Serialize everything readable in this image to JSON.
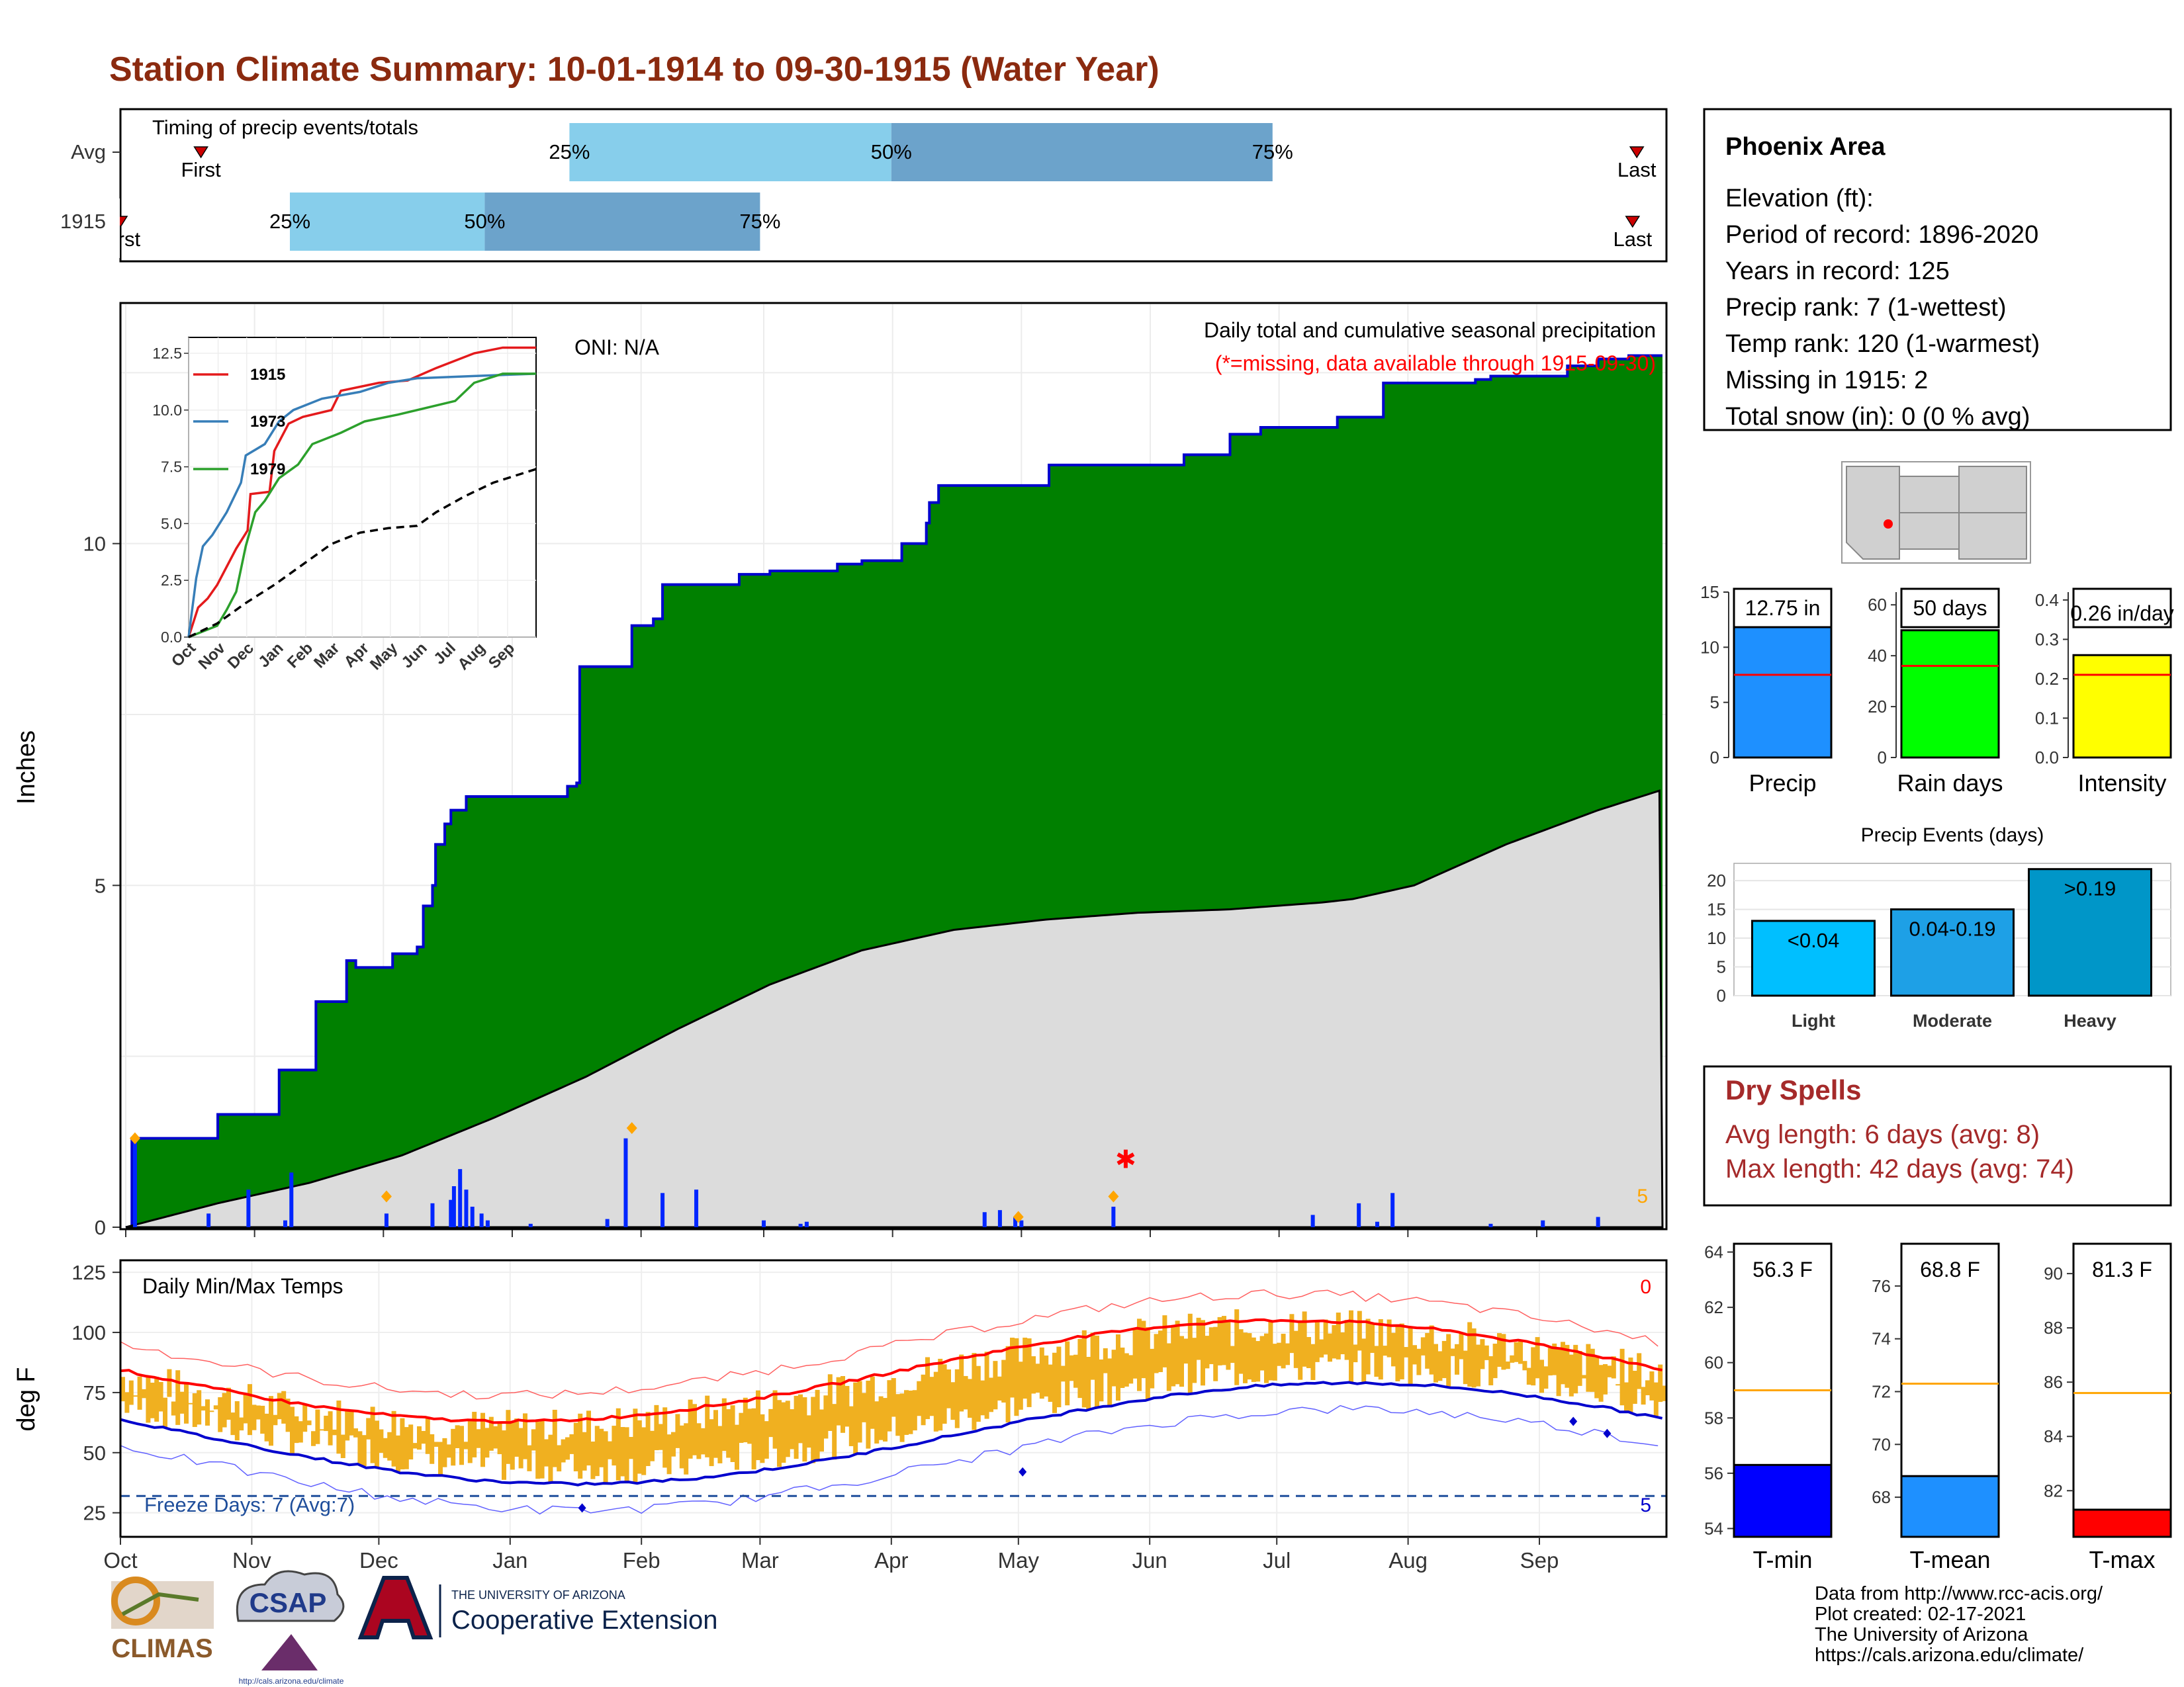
{
  "title": "Station Climate Summary: 10-01-1914 to 09-30-1915 (Water Year)",
  "months": [
    "Oct",
    "Nov",
    "Dec",
    "Jan",
    "Feb",
    "Mar",
    "Apr",
    "May",
    "Jun",
    "Jul",
    "Aug",
    "Sep"
  ],
  "colors": {
    "title": "#8b2a0f",
    "q1": "#87ceeb",
    "q2": "#6ca3cb",
    "green": "#008000",
    "blue_line": "#0000cd",
    "gray": "#dcdcdc",
    "bar": "#0026ff",
    "orange": "#ffa500",
    "tband": "#f0b020",
    "red": "#ff0000",
    "dry": "#a52a2a",
    "dark_blue": "#1f4e9b"
  },
  "timing": {
    "title": "Timing of precip events/totals",
    "rows": [
      {
        "label": "Avg",
        "first": "First",
        "last": "Last",
        "q25": "25%",
        "q50": "50%",
        "q75": "75%",
        "first_day": 19,
        "last_day": 358,
        "q25_day": 106,
        "q50_day": 182,
        "q75_day": 272
      },
      {
        "label": "1915",
        "first": "First",
        "last": "Last",
        "q25": "25%",
        "q50": "50%",
        "q75": "75%",
        "first_day": 0,
        "last_day": 357,
        "q25_day": 40,
        "q50_day": 86,
        "q75_day": 151
      }
    ]
  },
  "precip": {
    "ylabel": "Inches",
    "yticks": [
      0,
      5,
      10
    ],
    "ylim": [
      0,
      13.5
    ],
    "header": "Daily total and cumulative seasonal precipitation",
    "missing_note": "(*=missing, data available through 1915-09-30)",
    "oni": "ONI: N/A",
    "count_label": "5",
    "cum_1915_steps": [
      [
        0,
        0
      ],
      [
        2,
        1.3
      ],
      [
        20,
        1.3
      ],
      [
        30,
        1.65
      ],
      [
        40,
        1.65
      ],
      [
        50,
        2.3
      ],
      [
        61,
        2.3
      ],
      [
        62,
        3.3
      ],
      [
        71,
        3.3
      ],
      [
        72,
        3.9
      ],
      [
        75,
        3.8
      ],
      [
        84,
        3.8
      ],
      [
        87,
        4.0
      ],
      [
        95,
        4.1
      ],
      [
        97,
        4.7
      ],
      [
        100,
        5.0
      ],
      [
        101,
        5.6
      ],
      [
        104,
        5.9
      ],
      [
        106,
        6.1
      ],
      [
        111,
        6.3
      ],
      [
        125,
        6.3
      ],
      [
        144,
        6.45
      ],
      [
        147,
        6.5
      ],
      [
        148,
        8.2
      ],
      [
        160,
        8.2
      ],
      [
        165,
        8.8
      ],
      [
        172,
        8.9
      ],
      [
        175,
        9.4
      ],
      [
        190,
        9.4
      ],
      [
        200,
        9.55
      ],
      [
        210,
        9.6
      ],
      [
        225,
        9.6
      ],
      [
        232,
        9.7
      ],
      [
        240,
        9.75
      ],
      [
        252,
        9.75
      ],
      [
        253,
        10.0
      ],
      [
        260,
        10.0
      ],
      [
        261,
        10.3
      ],
      [
        262,
        10.6
      ],
      [
        265,
        10.85
      ],
      [
        300,
        10.85
      ],
      [
        301,
        11.15
      ],
      [
        340,
        11.15
      ],
      [
        345,
        11.2
      ],
      [
        345,
        11.3
      ],
      [
        359,
        11.3
      ],
      [
        360,
        11.6
      ],
      [
        362,
        11.6
      ],
      [
        370,
        11.7
      ],
      [
        395,
        11.85
      ],
      [
        410,
        12.35
      ],
      [
        440,
        12.4
      ],
      [
        445,
        12.45
      ],
      [
        470,
        12.6
      ],
      [
        480,
        12.7
      ],
      [
        490,
        12.75
      ],
      [
        501,
        12.75
      ]
    ],
    "avg_cum": [
      [
        0,
        0
      ],
      [
        30,
        0.35
      ],
      [
        60,
        0.65
      ],
      [
        90,
        1.05
      ],
      [
        120,
        1.6
      ],
      [
        150,
        2.2
      ],
      [
        180,
        2.9
      ],
      [
        210,
        3.55
      ],
      [
        240,
        4.05
      ],
      [
        270,
        4.35
      ],
      [
        300,
        4.5
      ],
      [
        330,
        4.6
      ],
      [
        360,
        4.65
      ],
      [
        390,
        4.75
      ],
      [
        400,
        4.8
      ],
      [
        420,
        5.0
      ],
      [
        450,
        5.6
      ],
      [
        480,
        6.1
      ],
      [
        501,
        6.4
      ]
    ],
    "daily_bars": [
      [
        3,
        1.35
      ],
      [
        27,
        0.2
      ],
      [
        40,
        0.55
      ],
      [
        52,
        0.1
      ],
      [
        54,
        0.8
      ],
      [
        85,
        0.2
      ],
      [
        100,
        0.35
      ],
      [
        106,
        0.4
      ],
      [
        107,
        0.6
      ],
      [
        109,
        0.85
      ],
      [
        111,
        0.55
      ],
      [
        113,
        0.3
      ],
      [
        116,
        0.2
      ],
      [
        118,
        0.1
      ],
      [
        132,
        0.05
      ],
      [
        157,
        0.12
      ],
      [
        163,
        1.3
      ],
      [
        175,
        0.5
      ],
      [
        186,
        0.55
      ],
      [
        208,
        0.1
      ],
      [
        220,
        0.05
      ],
      [
        222,
        0.08
      ],
      [
        280,
        0.22
      ],
      [
        285,
        0.25
      ],
      [
        290,
        0.15
      ],
      [
        292,
        0.1
      ],
      [
        322,
        0.3
      ],
      [
        387,
        0.18
      ],
      [
        402,
        0.35
      ],
      [
        408,
        0.08
      ],
      [
        413,
        0.5
      ],
      [
        445,
        0.05
      ],
      [
        462,
        0.1
      ],
      [
        480,
        0.15
      ]
    ],
    "orange_markers": [
      [
        3,
        1.3
      ],
      [
        85,
        0.45
      ],
      [
        165,
        1.45
      ],
      [
        291,
        0.15
      ],
      [
        322,
        0.45
      ]
    ],
    "missing_marker": [
      [
        326,
        1.0
      ]
    ],
    "inset": {
      "yticks": [
        "12.5",
        "10.0",
        "7.5",
        "5.0",
        "2.5",
        "0.0"
      ],
      "series": [
        {
          "name": "1915",
          "color": "#e41a1c",
          "values": [
            [
              0,
              0
            ],
            [
              10,
              1.3
            ],
            [
              20,
              1.7
            ],
            [
              30,
              2.3
            ],
            [
              50,
              3.9
            ],
            [
              62,
              4.7
            ],
            [
              65,
              6.3
            ],
            [
              85,
              6.4
            ],
            [
              90,
              8.2
            ],
            [
              100,
              9.0
            ],
            [
              105,
              9.4
            ],
            [
              120,
              9.7
            ],
            [
              150,
              10.0
            ],
            [
              160,
              10.85
            ],
            [
              200,
              11.2
            ],
            [
              230,
              11.3
            ],
            [
              260,
              11.85
            ],
            [
              300,
              12.5
            ],
            [
              330,
              12.75
            ],
            [
              365,
              12.75
            ]
          ]
        },
        {
          "name": "1973",
          "color": "#377eb8",
          "values": [
            [
              0,
              0
            ],
            [
              8,
              2.6
            ],
            [
              15,
              4.0
            ],
            [
              25,
              4.5
            ],
            [
              40,
              5.5
            ],
            [
              55,
              6.8
            ],
            [
              60,
              8.0
            ],
            [
              80,
              8.5
            ],
            [
              95,
              9.5
            ],
            [
              110,
              10.0
            ],
            [
              140,
              10.5
            ],
            [
              180,
              10.8
            ],
            [
              210,
              11.2
            ],
            [
              240,
              11.4
            ],
            [
              300,
              11.5
            ],
            [
              365,
              11.6
            ]
          ]
        },
        {
          "name": "1979",
          "color": "#2ca02c",
          "values": [
            [
              0,
              0
            ],
            [
              30,
              0.5
            ],
            [
              40,
              1.2
            ],
            [
              50,
              2.0
            ],
            [
              60,
              4.0
            ],
            [
              70,
              5.5
            ],
            [
              80,
              6.0
            ],
            [
              95,
              7.0
            ],
            [
              115,
              7.6
            ],
            [
              130,
              8.5
            ],
            [
              160,
              9.0
            ],
            [
              185,
              9.5
            ],
            [
              220,
              9.8
            ],
            [
              260,
              10.2
            ],
            [
              280,
              10.4
            ],
            [
              300,
              11.2
            ],
            [
              330,
              11.6
            ],
            [
              365,
              11.6
            ]
          ]
        },
        {
          "name": "",
          "color": "#000000",
          "values": [
            [
              0,
              0
            ],
            [
              30,
              0.6
            ],
            [
              60,
              1.5
            ],
            [
              90,
              2.3
            ],
            [
              120,
              3.2
            ],
            [
              150,
              4.1
            ],
            [
              180,
              4.6
            ],
            [
              210,
              4.8
            ],
            [
              240,
              4.9
            ],
            [
              260,
              5.5
            ],
            [
              290,
              6.2
            ],
            [
              320,
              6.8
            ],
            [
              365,
              7.4
            ]
          ]
        }
      ]
    }
  },
  "temps": {
    "ylabel": "deg F",
    "title": "Daily Min/Max Temps",
    "yticks": [
      25,
      50,
      75,
      100,
      125
    ],
    "ylim": [
      15,
      130
    ],
    "freeze_label": "Freeze Days: 7 (Avg:7)",
    "freeze_value": 32,
    "top_count": "0",
    "bottom_count": "5"
  },
  "info": {
    "station": "Phoenix Area",
    "lines": [
      "Elevation (ft):",
      "Period of record: 1896-2020",
      "Years in record: 125",
      "Precip rank: 7 (1-wettest)",
      "Temp rank: 120 (1-warmest)",
      "Missing in 1915: 2",
      "Total snow (in): 0 (0 % avg)"
    ]
  },
  "mini_bars": [
    {
      "name": "Precip",
      "label": "12.75 in",
      "value": 12.75,
      "avg": 7.5,
      "ylim": [
        0,
        15
      ],
      "ticks": [
        "15",
        "10",
        "5",
        "0"
      ],
      "color": "#1e90ff"
    },
    {
      "name": "Rain days",
      "label": "50 days",
      "value": 50,
      "avg": 36,
      "ylim": [
        0,
        65
      ],
      "ticks": [
        "60",
        "40",
        "20",
        "0"
      ],
      "color": "#00ff00"
    },
    {
      "name": "Intensity",
      "label": "0.26 in/day",
      "value": 0.26,
      "avg": 0.21,
      "ylim": [
        0,
        0.42
      ],
      "ticks": [
        "0.4",
        "0.3",
        "0.2",
        "0.1",
        "0.0"
      ],
      "color": "#ffff00"
    }
  ],
  "events": {
    "title": "Precip Events (days)",
    "bars": [
      {
        "name": "Light",
        "label": "<0.04",
        "value": 13
      },
      {
        "name": "Moderate",
        "label": "0.04-0.19",
        "value": 15
      },
      {
        "name": "Heavy",
        "label": ">0.19",
        "value": 22
      }
    ],
    "ticks": [
      "20",
      "15",
      "10",
      "5",
      "0"
    ]
  },
  "dry": {
    "title": "Dry Spells",
    "avg": "Avg length: 6 days (avg: 8)",
    "max": "Max length: 42 days (avg: 74)"
  },
  "temp_bars": [
    {
      "name": "T-min",
      "label": "56.3 F",
      "value": 56.3,
      "avg": 59.0,
      "ylim": [
        53.7,
        64.3
      ],
      "ticks": [
        "64",
        "62",
        "60",
        "58",
        "56",
        "54"
      ],
      "color": "#0000ff"
    },
    {
      "name": "T-mean",
      "label": "68.8 F",
      "value": 68.8,
      "avg": 72.3,
      "ylim": [
        66.5,
        77.6
      ],
      "ticks": [
        "76",
        "74",
        "72",
        "70",
        "68"
      ],
      "color": "#1e90ff"
    },
    {
      "name": "T-max",
      "label": "81.3 F",
      "value": 81.3,
      "avg": 85.6,
      "ylim": [
        80.3,
        91.1
      ],
      "ticks": [
        "90",
        "88",
        "86",
        "84",
        "82"
      ],
      "color": "#ff0000"
    }
  ],
  "credits": [
    "Data from http://www.rcc-acis.org/",
    "Plot created: 02-17-2021",
    "The University of Arizona",
    "https://cals.arizona.edu/climate/"
  ],
  "logos": {
    "climas": "CLIMAS",
    "csap": "CSAP",
    "csap_url": "http://cals.arizona.edu/climate",
    "ua_top": "THE UNIVERSITY OF ARIZONA",
    "ua_main": "Cooperative Extension"
  }
}
